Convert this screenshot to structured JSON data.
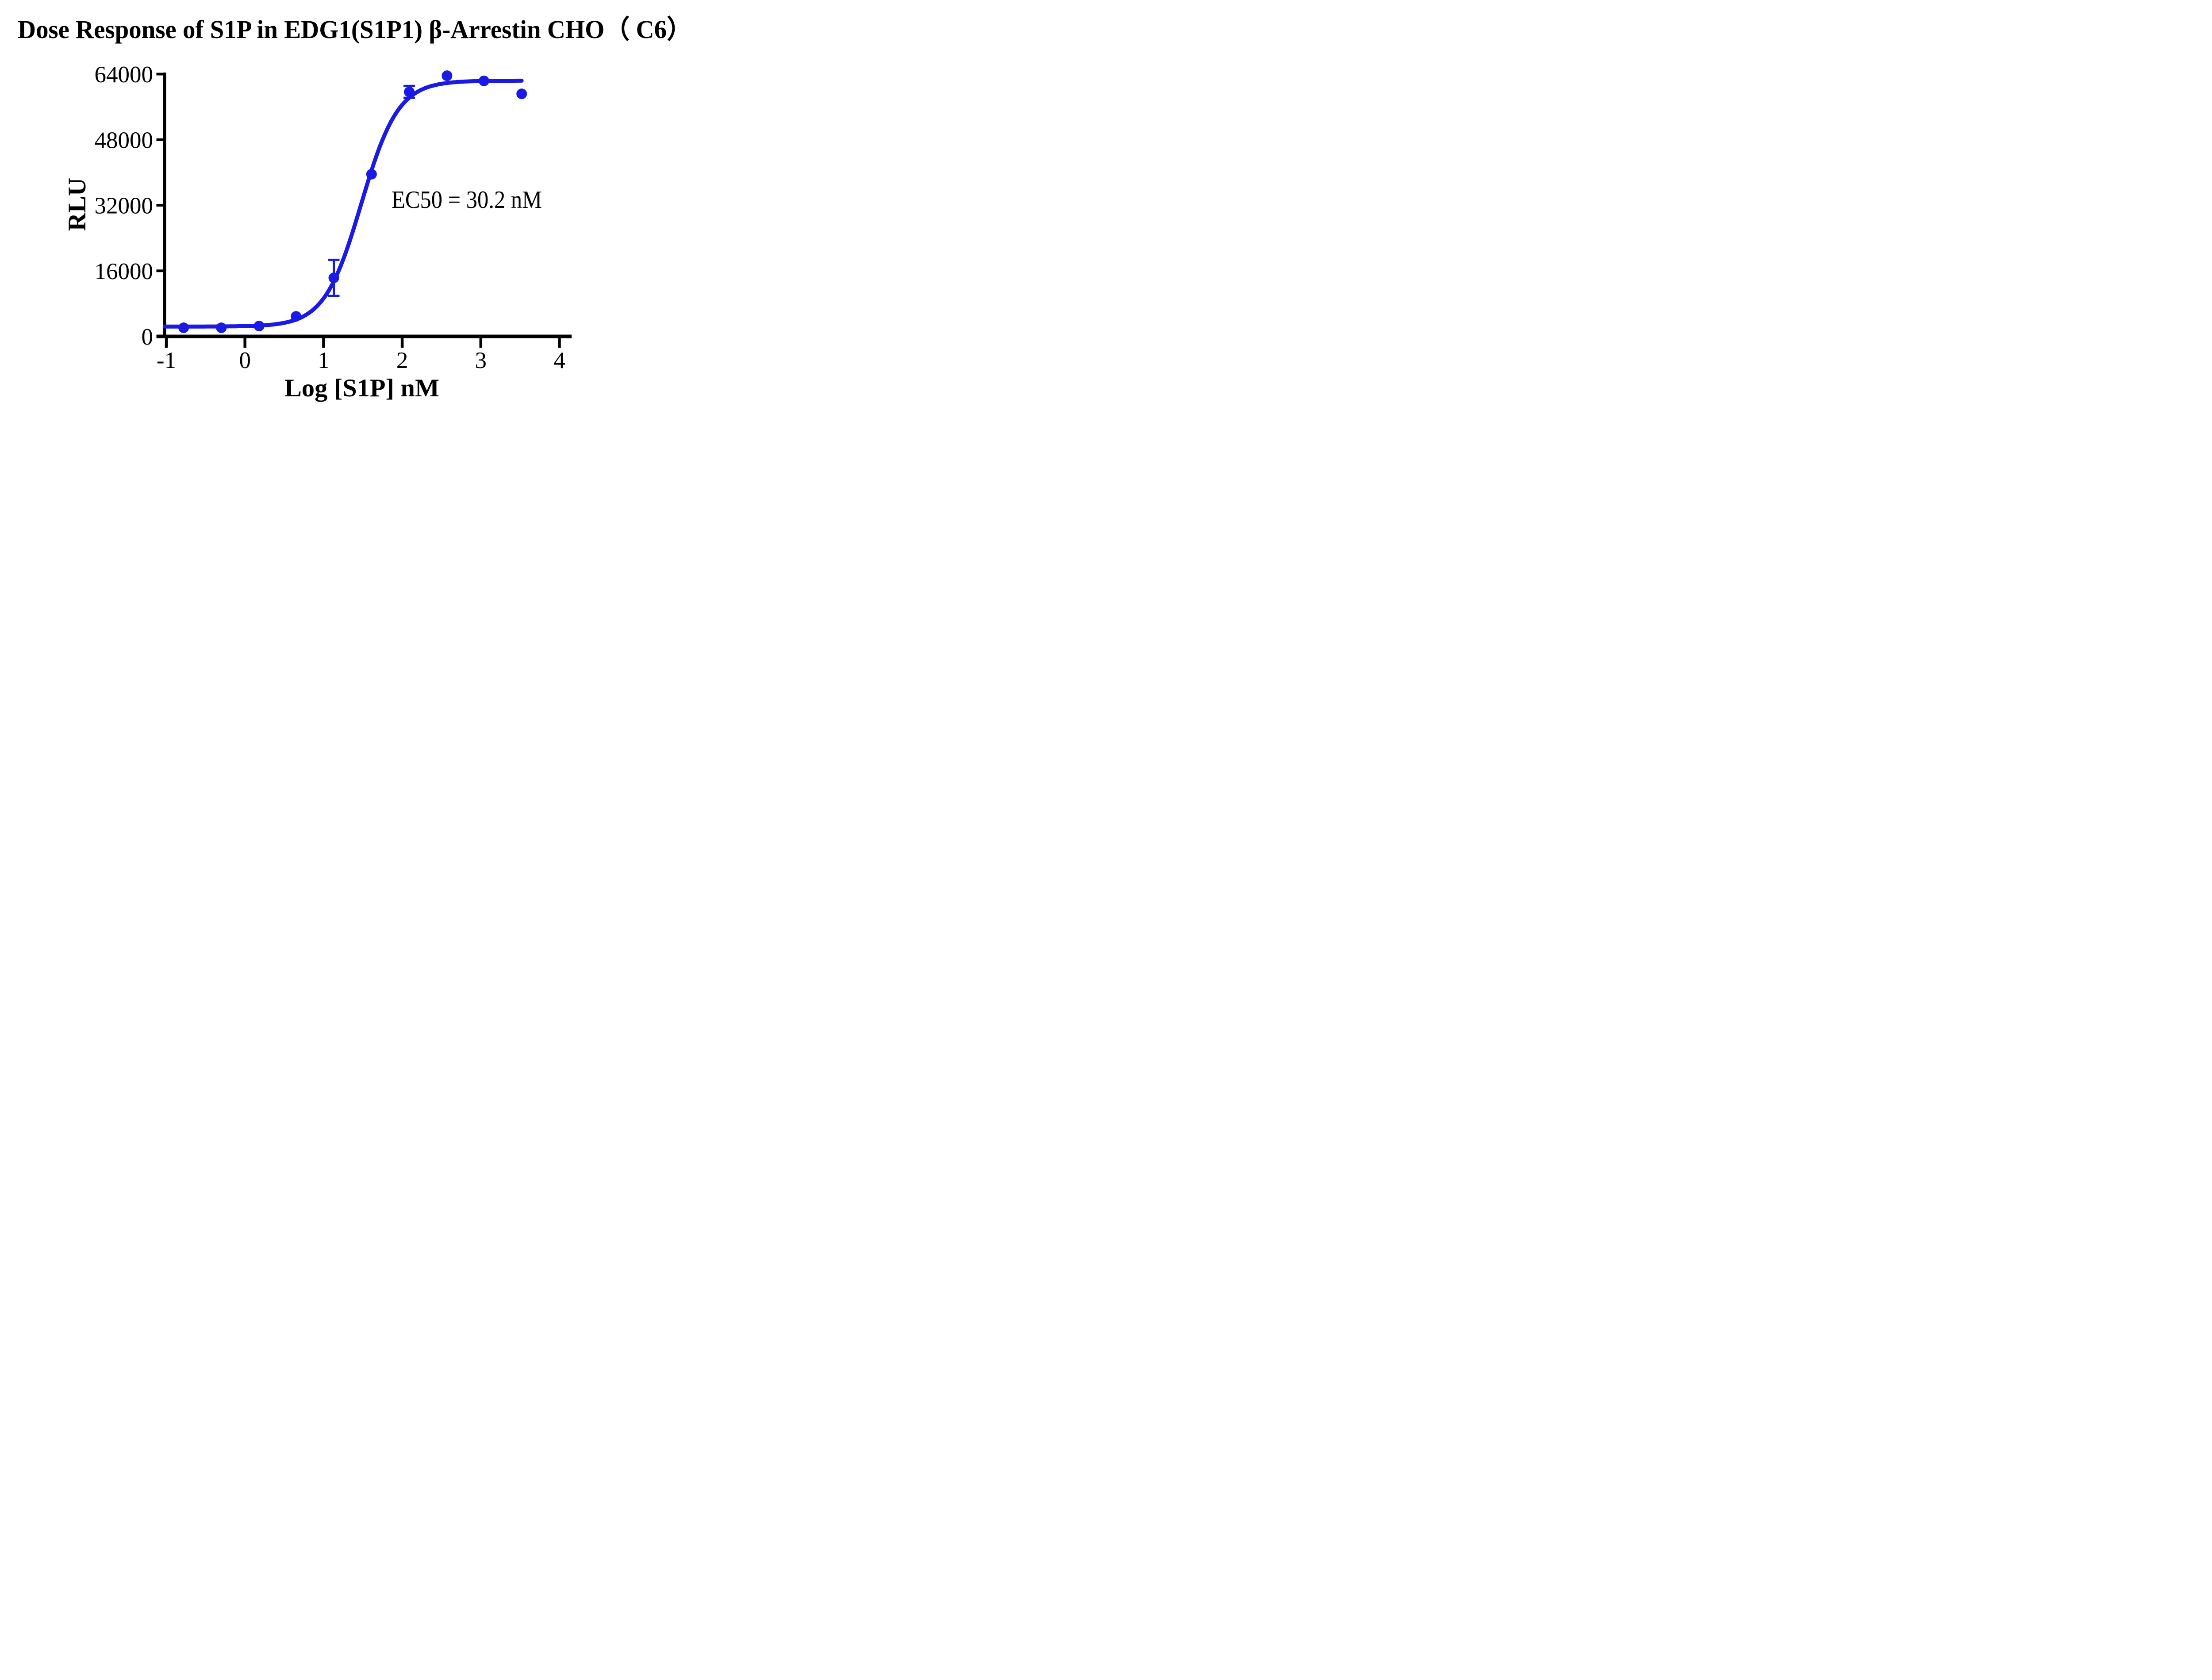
{
  "page": {
    "background": "#ffffff",
    "axis_color": "#000000"
  },
  "chart_data": {
    "type": "scatter",
    "title": "Dose Response of S1P in EDG1(S1P1) β-Arrestin CHO（ C6）",
    "xlabel": "Log [S1P] nM",
    "ylabel": "RLU",
    "annotation": {
      "text": "EC50 = 30.2 nM",
      "ec50_nM": 30.2
    },
    "axes": {
      "xlim": [
        -1,
        4
      ],
      "ylim": [
        0,
        64000
      ],
      "x_ticks": [
        -1,
        0,
        1,
        2,
        3,
        4
      ],
      "y_ticks": [
        0,
        16000,
        32000,
        48000,
        64000
      ],
      "grid": false,
      "legend_position": "none"
    },
    "series": [
      {
        "name": "S1P",
        "color": "#1A1AE6",
        "marker": "circle",
        "points": [
          {
            "x": -0.78,
            "y": 2100
          },
          {
            "x": -0.3,
            "y": 2100
          },
          {
            "x": 0.18,
            "y": 2530
          },
          {
            "x": 0.65,
            "y": 4890
          },
          {
            "x": 1.13,
            "y": 14280,
            "err": 4400
          },
          {
            "x": 1.61,
            "y": 39580
          },
          {
            "x": 2.09,
            "y": 59660,
            "err": 1450
          },
          {
            "x": 2.57,
            "y": 63610
          },
          {
            "x": 3.04,
            "y": 62340
          },
          {
            "x": 3.52,
            "y": 59180
          }
        ],
        "fit": {
          "model": "4PL",
          "bottom": 2400,
          "top": 62400,
          "logEC50": 1.48,
          "hill": 1.85,
          "x_start": -1.02,
          "x_end": 3.52
        }
      }
    ]
  }
}
